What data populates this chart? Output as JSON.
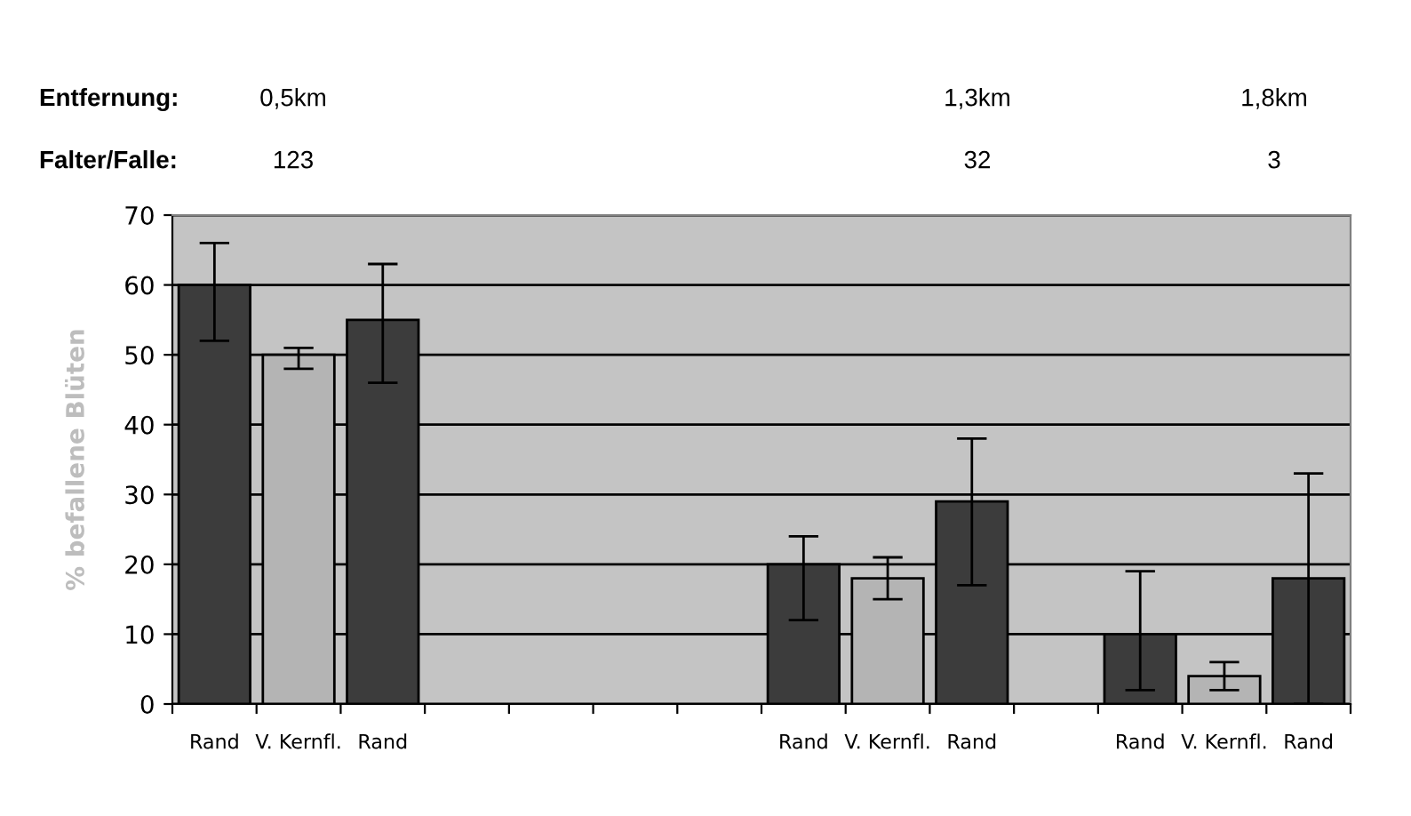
{
  "chart_data": {
    "type": "bar",
    "ylabel": "% befallene Blüten",
    "categories": [
      "Rand",
      "V. Kernfl.",
      "Rand",
      null,
      null,
      null,
      null,
      "Rand",
      "V. Kernfl.",
      "Rand",
      null,
      "Rand",
      "V. Kernfl.",
      "Rand"
    ],
    "values": [
      60,
      50,
      55,
      null,
      null,
      null,
      null,
      20,
      18,
      29,
      null,
      10,
      4,
      18
    ],
    "colors": [
      "#3c3c3c",
      "#b4b4b4",
      "#3c3c3c",
      null,
      null,
      null,
      null,
      "#3c3c3c",
      "#b4b4b4",
      "#3c3c3c",
      null,
      "#3c3c3c",
      "#b4b4b4",
      "#3c3c3c"
    ],
    "errors": [
      [
        52,
        66
      ],
      [
        48,
        51
      ],
      [
        46,
        63
      ],
      null,
      null,
      null,
      null,
      [
        12,
        24
      ],
      [
        15,
        21
      ],
      [
        17,
        38
      ],
      null,
      [
        2,
        19
      ],
      [
        2,
        6
      ],
      [
        0,
        33
      ]
    ],
    "ylim": [
      0,
      70
    ],
    "yticks": [
      0,
      10,
      20,
      30,
      40,
      50,
      60,
      70
    ],
    "grid": "y",
    "legend": false,
    "annotations": [
      "Entfernung:",
      "0,5km",
      "1,3km",
      "1,8km",
      "Falter/Falle:",
      "123",
      "32",
      "3"
    ]
  }
}
